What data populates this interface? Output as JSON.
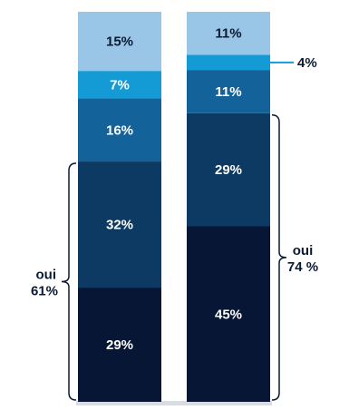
{
  "chart_data": {
    "type": "bar",
    "stacked": true,
    "orientation": "vertical",
    "unit": "%",
    "columns": [
      {
        "segments_bottom_to_top": [
          {
            "value": 29,
            "label": "29%",
            "color": "#061634",
            "text_color": "#ffffff"
          },
          {
            "value": 32,
            "label": "32%",
            "color": "#0d3a62",
            "text_color": "#ffffff"
          },
          {
            "value": 16,
            "label": "16%",
            "color": "#13629a",
            "text_color": "#ffffff"
          },
          {
            "value": 7,
            "label": "7%",
            "color": "#149bd6",
            "text_color": "#ffffff"
          },
          {
            "value": 15,
            "label": "15%",
            "color": "#99c6e7",
            "text_color": "#0b1a33"
          }
        ],
        "bracket": {
          "line1": "oui",
          "line2": "61%",
          "side": "left",
          "segments": [
            0,
            1
          ]
        }
      },
      {
        "segments_bottom_to_top": [
          {
            "value": 45,
            "label": "45%",
            "color": "#061634",
            "text_color": "#ffffff"
          },
          {
            "value": 29,
            "label": "29%",
            "color": "#0d3a62",
            "text_color": "#ffffff"
          },
          {
            "value": 11,
            "label": "11%",
            "color": "#13629a",
            "text_color": "#ffffff"
          },
          {
            "value": 4,
            "label": "4%",
            "color": "#149bd6",
            "text_color": "#0b1a33",
            "callout": true
          },
          {
            "value": 11,
            "label": "11%",
            "color": "#99c6e7",
            "text_color": "#0b1a33"
          }
        ],
        "bracket": {
          "line1": "oui",
          "line2": "74 %",
          "side": "right",
          "segments": [
            0,
            1
          ]
        }
      }
    ]
  },
  "colors": {
    "bracket": "#0b1a33",
    "callout_line": "#149bd6",
    "shadow": "#d9dde2"
  }
}
